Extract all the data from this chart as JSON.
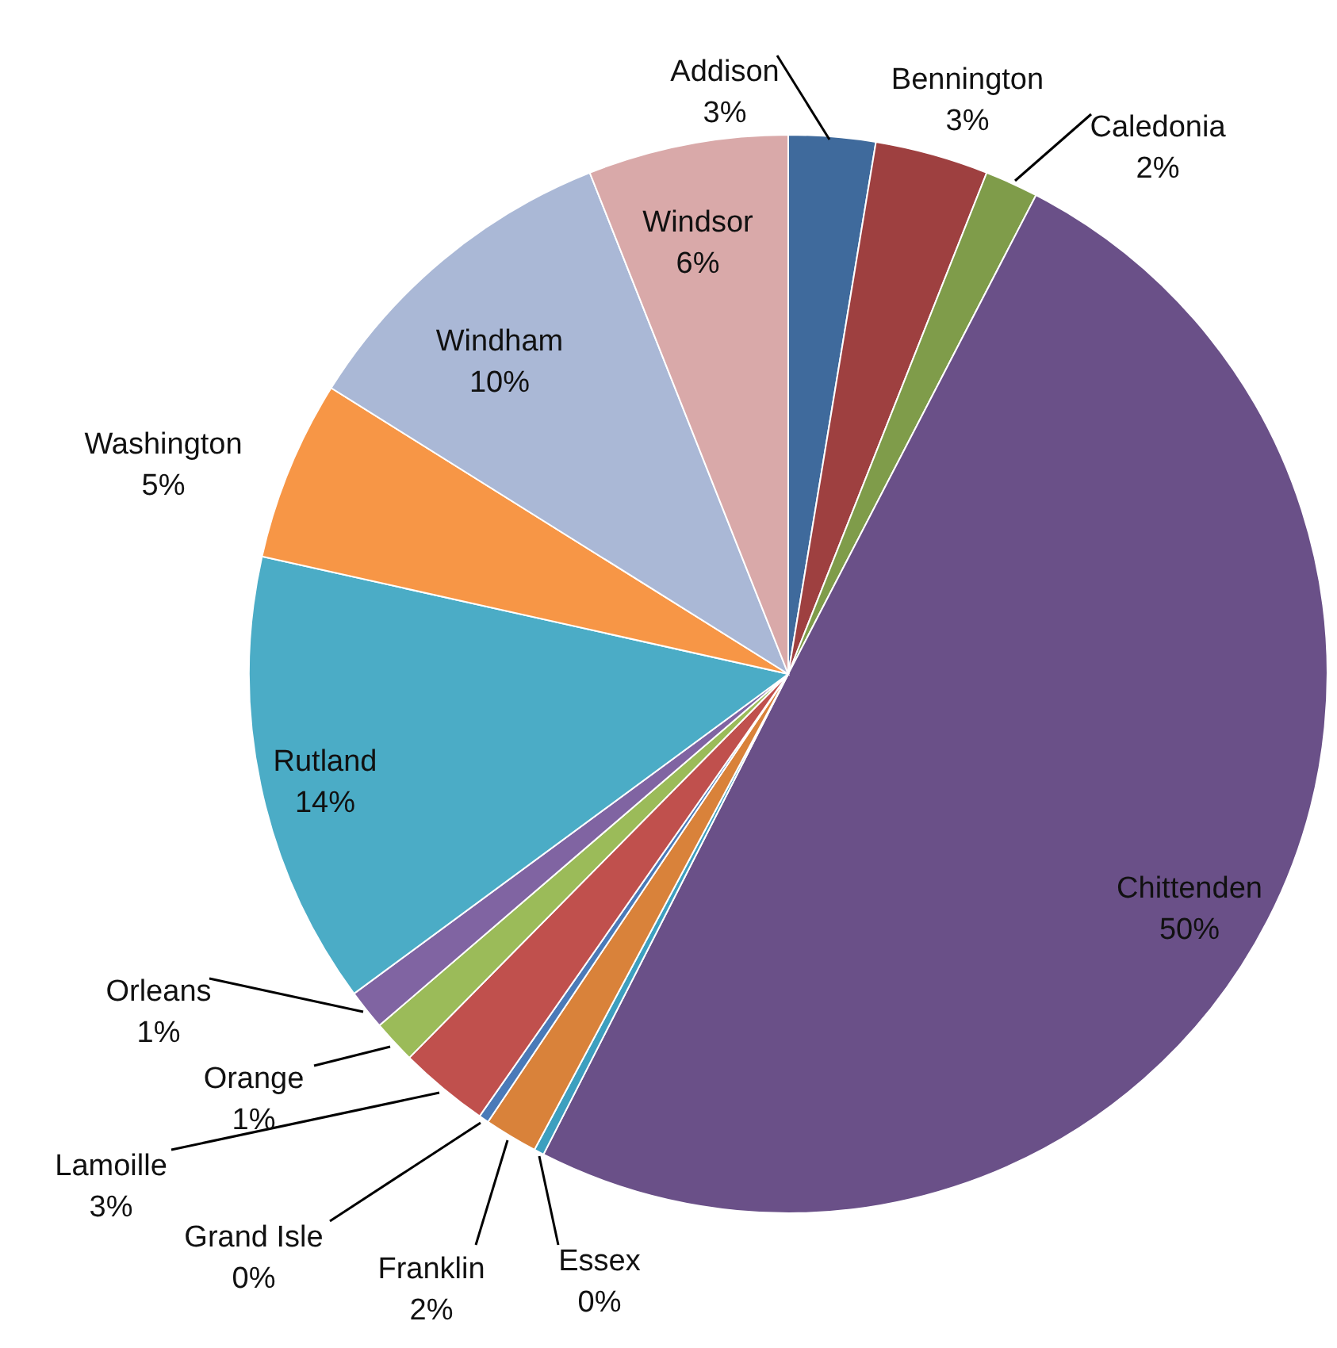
{
  "chart_data": {
    "type": "pie",
    "categories": [
      "Addison",
      "Bennington",
      "Caledonia",
      "Chittenden",
      "Essex",
      "Franklin",
      "Grand Isle",
      "Lamoille",
      "Orange",
      "Orleans",
      "Rutland",
      "Washington",
      "Windham",
      "Windsor"
    ],
    "values": [
      2.6,
      3.4,
      1.6,
      49.9,
      0.3,
      1.6,
      0.3,
      2.7,
      1.3,
      1.2,
      13.6,
      5.4,
      10.1,
      6.0
    ],
    "value_labels": [
      "3%",
      "3%",
      "2%",
      "50%",
      "0%",
      "2%",
      "0%",
      "3%",
      "1%",
      "1%",
      "14%",
      "5%",
      "10%",
      "6%"
    ],
    "colors": [
      "#3f6a9c",
      "#9e4040",
      "#7f9c4a",
      "#6a5088",
      "#3d9fbf",
      "#d9823a",
      "#4a7ab8",
      "#c0504d",
      "#9bbb59",
      "#8064a2",
      "#4bacc6",
      "#f79646",
      "#aab8d6",
      "#d9a9a9"
    ]
  }
}
